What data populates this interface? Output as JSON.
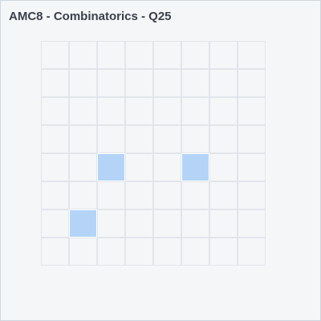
{
  "title": "AMC8 - Combinatorics - Q25",
  "grid": {
    "rows": 8,
    "cols": 8,
    "marked": [
      {
        "row": 4,
        "col": 2
      },
      {
        "row": 4,
        "col": 5
      },
      {
        "row": 6,
        "col": 1
      }
    ]
  },
  "colors": {
    "background": "#f5f6f8",
    "grid_line": "#e2e5ea",
    "marked": "#b3d4f7",
    "title": "#3a3f4a"
  }
}
